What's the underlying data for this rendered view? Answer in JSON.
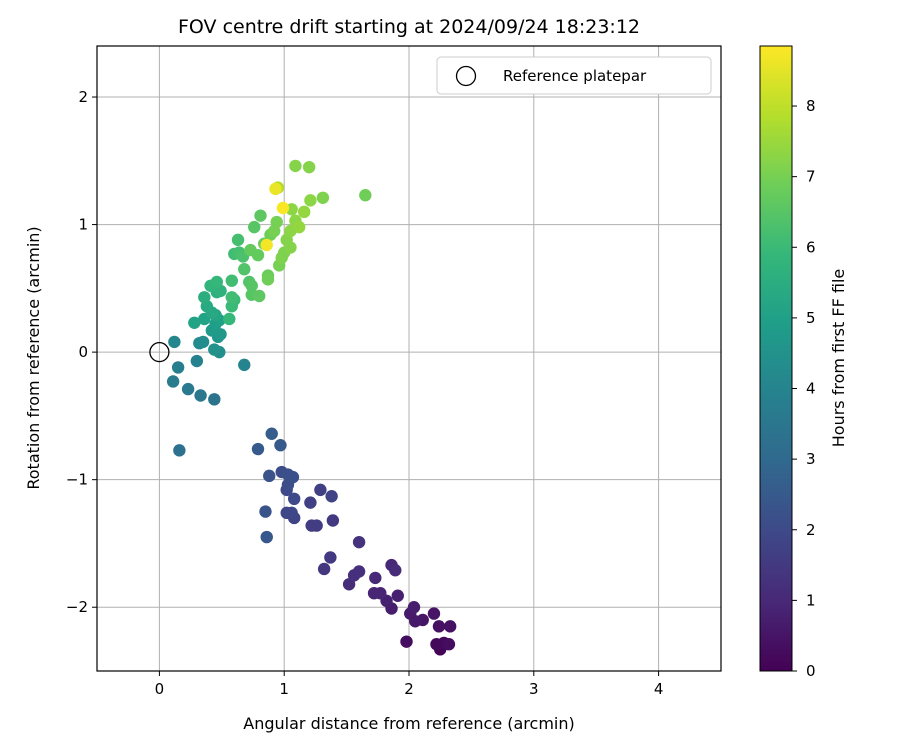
{
  "chart_data": {
    "type": "scatter",
    "title": "FOV centre drift starting at 2024/09/24 18:23:12",
    "xlabel": "Angular distance from reference (arcmin)",
    "ylabel": "Rotation from reference (arcmin)",
    "xlim": [
      -0.5,
      4.5
    ],
    "ylim": [
      -2.5,
      2.4
    ],
    "xticks": [
      0,
      1,
      2,
      3,
      4
    ],
    "yticks": [
      -2,
      -1,
      0,
      1,
      2
    ],
    "grid": true,
    "legend": {
      "position": "top-right",
      "entries": [
        "Reference platepar"
      ]
    },
    "reference": {
      "label": "Reference platepar",
      "x": 0,
      "y": 0,
      "marker": "open-circle"
    },
    "colorbar": {
      "label": "Hours from first FF file",
      "range": [
        0,
        8.85
      ],
      "ticks": [
        0,
        1,
        2,
        3,
        4,
        5,
        6,
        7,
        8
      ],
      "colormap": "viridis"
    },
    "colormap_stops": [
      "#440154",
      "#482878",
      "#3e4989",
      "#31688e",
      "#26828e",
      "#1f9e89",
      "#35b779",
      "#6ece58",
      "#b5de2b",
      "#fde725"
    ],
    "points": [
      {
        "x": 2.25,
        "y": -2.33,
        "c": 0.1
      },
      {
        "x": 2.22,
        "y": -2.29,
        "c": 0.2
      },
      {
        "x": 2.28,
        "y": -2.28,
        "c": 0.2
      },
      {
        "x": 2.32,
        "y": -2.29,
        "c": 0.3
      },
      {
        "x": 1.98,
        "y": -2.27,
        "c": 0.3
      },
      {
        "x": 2.33,
        "y": -2.15,
        "c": 0.4
      },
      {
        "x": 2.24,
        "y": -2.15,
        "c": 0.4
      },
      {
        "x": 2.2,
        "y": -2.05,
        "c": 0.5
      },
      {
        "x": 2.11,
        "y": -2.1,
        "c": 0.5
      },
      {
        "x": 2.05,
        "y": -2.11,
        "c": 0.6
      },
      {
        "x": 2.01,
        "y": -2.05,
        "c": 0.6
      },
      {
        "x": 2.04,
        "y": -2.0,
        "c": 0.7
      },
      {
        "x": 1.86,
        "y": -2.01,
        "c": 0.7
      },
      {
        "x": 1.82,
        "y": -1.95,
        "c": 0.8
      },
      {
        "x": 1.91,
        "y": -1.91,
        "c": 0.8
      },
      {
        "x": 1.77,
        "y": -1.89,
        "c": 0.9
      },
      {
        "x": 1.72,
        "y": -1.89,
        "c": 0.9
      },
      {
        "x": 1.73,
        "y": -1.77,
        "c": 1.0
      },
      {
        "x": 1.86,
        "y": -1.67,
        "c": 1.0
      },
      {
        "x": 1.89,
        "y": -1.71,
        "c": 1.1
      },
      {
        "x": 1.52,
        "y": -1.82,
        "c": 1.1
      },
      {
        "x": 1.56,
        "y": -1.75,
        "c": 1.2
      },
      {
        "x": 1.6,
        "y": -1.72,
        "c": 1.2
      },
      {
        "x": 1.6,
        "y": -1.49,
        "c": 1.3
      },
      {
        "x": 1.32,
        "y": -1.7,
        "c": 1.4
      },
      {
        "x": 1.37,
        "y": -1.61,
        "c": 1.5
      },
      {
        "x": 1.39,
        "y": -1.32,
        "c": 1.5
      },
      {
        "x": 1.22,
        "y": -1.36,
        "c": 1.6
      },
      {
        "x": 1.26,
        "y": -1.36,
        "c": 1.6
      },
      {
        "x": 1.21,
        "y": -1.18,
        "c": 1.7
      },
      {
        "x": 1.29,
        "y": -1.08,
        "c": 1.7
      },
      {
        "x": 1.38,
        "y": -1.13,
        "c": 1.8
      },
      {
        "x": 1.08,
        "y": -1.3,
        "c": 1.8
      },
      {
        "x": 1.02,
        "y": -1.26,
        "c": 1.9
      },
      {
        "x": 1.06,
        "y": -1.26,
        "c": 1.9
      },
      {
        "x": 1.08,
        "y": -1.15,
        "c": 2.0
      },
      {
        "x": 1.02,
        "y": -1.08,
        "c": 2.0
      },
      {
        "x": 1.03,
        "y": -1.04,
        "c": 2.1
      },
      {
        "x": 0.98,
        "y": -0.94,
        "c": 2.1
      },
      {
        "x": 1.03,
        "y": -0.96,
        "c": 2.2
      },
      {
        "x": 1.07,
        "y": -0.98,
        "c": 2.2
      },
      {
        "x": 0.88,
        "y": -0.97,
        "c": 2.3
      },
      {
        "x": 0.85,
        "y": -1.25,
        "c": 2.3
      },
      {
        "x": 0.86,
        "y": -1.45,
        "c": 2.4
      },
      {
        "x": 0.79,
        "y": -0.76,
        "c": 2.5
      },
      {
        "x": 0.97,
        "y": -0.73,
        "c": 2.5
      },
      {
        "x": 0.9,
        "y": -0.64,
        "c": 2.6
      },
      {
        "x": 0.16,
        "y": -0.77,
        "c": 3.3
      },
      {
        "x": 0.44,
        "y": -0.37,
        "c": 3.4
      },
      {
        "x": 0.33,
        "y": -0.34,
        "c": 3.5
      },
      {
        "x": 0.23,
        "y": -0.29,
        "c": 3.6
      },
      {
        "x": 0.11,
        "y": -0.23,
        "c": 3.7
      },
      {
        "x": 0.15,
        "y": -0.12,
        "c": 3.8
      },
      {
        "x": 0.3,
        "y": -0.07,
        "c": 3.9
      },
      {
        "x": 0.68,
        "y": -0.1,
        "c": 4.0
      },
      {
        "x": 0.12,
        "y": 0.08,
        "c": 4.1
      },
      {
        "x": 0.32,
        "y": 0.07,
        "c": 4.2
      },
      {
        "x": 0.35,
        "y": 0.08,
        "c": 4.3
      },
      {
        "x": 0.48,
        "y": 0.0,
        "c": 4.4
      },
      {
        "x": 0.44,
        "y": 0.02,
        "c": 4.5
      },
      {
        "x": 0.47,
        "y": 0.12,
        "c": 4.6
      },
      {
        "x": 0.49,
        "y": 0.14,
        "c": 4.7
      },
      {
        "x": 0.42,
        "y": 0.17,
        "c": 4.8
      },
      {
        "x": 0.45,
        "y": 0.22,
        "c": 4.9
      },
      {
        "x": 0.48,
        "y": 0.25,
        "c": 5.0
      },
      {
        "x": 0.36,
        "y": 0.26,
        "c": 5.1
      },
      {
        "x": 0.28,
        "y": 0.23,
        "c": 5.1
      },
      {
        "x": 0.45,
        "y": 0.29,
        "c": 5.2
      },
      {
        "x": 0.42,
        "y": 0.31,
        "c": 5.3
      },
      {
        "x": 0.38,
        "y": 0.36,
        "c": 5.4
      },
      {
        "x": 0.36,
        "y": 0.43,
        "c": 5.5
      },
      {
        "x": 0.46,
        "y": 0.47,
        "c": 5.6
      },
      {
        "x": 0.49,
        "y": 0.48,
        "c": 5.7
      },
      {
        "x": 0.41,
        "y": 0.52,
        "c": 5.8
      },
      {
        "x": 0.46,
        "y": 0.55,
        "c": 5.9
      },
      {
        "x": 0.56,
        "y": 0.26,
        "c": 5.9
      },
      {
        "x": 0.58,
        "y": 0.36,
        "c": 6.0
      },
      {
        "x": 0.6,
        "y": 0.41,
        "c": 6.0
      },
      {
        "x": 0.58,
        "y": 0.56,
        "c": 6.1
      },
      {
        "x": 0.58,
        "y": 0.43,
        "c": 6.1
      },
      {
        "x": 0.6,
        "y": 0.77,
        "c": 6.1
      },
      {
        "x": 0.64,
        "y": 0.78,
        "c": 6.2
      },
      {
        "x": 0.63,
        "y": 0.88,
        "c": 6.2
      },
      {
        "x": 0.67,
        "y": 0.75,
        "c": 6.3
      },
      {
        "x": 0.68,
        "y": 0.65,
        "c": 6.4
      },
      {
        "x": 0.72,
        "y": 0.55,
        "c": 6.4
      },
      {
        "x": 0.74,
        "y": 0.45,
        "c": 6.5
      },
      {
        "x": 0.74,
        "y": 0.52,
        "c": 6.5
      },
      {
        "x": 0.8,
        "y": 0.44,
        "c": 6.6
      },
      {
        "x": 0.76,
        "y": 0.98,
        "c": 6.5
      },
      {
        "x": 0.81,
        "y": 1.07,
        "c": 6.6
      },
      {
        "x": 0.73,
        "y": 0.8,
        "c": 6.7
      },
      {
        "x": 0.79,
        "y": 0.76,
        "c": 6.7
      },
      {
        "x": 0.84,
        "y": 0.85,
        "c": 6.8
      },
      {
        "x": 0.87,
        "y": 0.6,
        "c": 6.8
      },
      {
        "x": 0.87,
        "y": 0.57,
        "c": 6.9
      },
      {
        "x": 0.89,
        "y": 0.92,
        "c": 6.9
      },
      {
        "x": 0.92,
        "y": 0.95,
        "c": 7.0
      },
      {
        "x": 0.94,
        "y": 1.02,
        "c": 7.0
      },
      {
        "x": 0.96,
        "y": 0.68,
        "c": 7.0
      },
      {
        "x": 0.98,
        "y": 0.74,
        "c": 7.1
      },
      {
        "x": 1.0,
        "y": 0.78,
        "c": 7.1
      },
      {
        "x": 1.02,
        "y": 0.88,
        "c": 7.2
      },
      {
        "x": 1.05,
        "y": 0.82,
        "c": 7.2
      },
      {
        "x": 1.05,
        "y": 0.95,
        "c": 7.3
      },
      {
        "x": 1.06,
        "y": 1.12,
        "c": 7.3
      },
      {
        "x": 1.09,
        "y": 1.03,
        "c": 7.3
      },
      {
        "x": 1.12,
        "y": 0.98,
        "c": 7.4
      },
      {
        "x": 1.16,
        "y": 1.1,
        "c": 7.4
      },
      {
        "x": 1.21,
        "y": 1.19,
        "c": 7.3
      },
      {
        "x": 1.31,
        "y": 1.21,
        "c": 7.1
      },
      {
        "x": 1.65,
        "y": 1.23,
        "c": 6.9
      },
      {
        "x": 1.09,
        "y": 1.46,
        "c": 7.2
      },
      {
        "x": 1.2,
        "y": 1.45,
        "c": 7.2
      },
      {
        "x": 0.95,
        "y": 1.29,
        "c": 7.8
      },
      {
        "x": 0.93,
        "y": 1.28,
        "c": 8.6
      },
      {
        "x": 0.99,
        "y": 1.13,
        "c": 8.8
      },
      {
        "x": 0.86,
        "y": 0.84,
        "c": 8.7
      }
    ]
  }
}
